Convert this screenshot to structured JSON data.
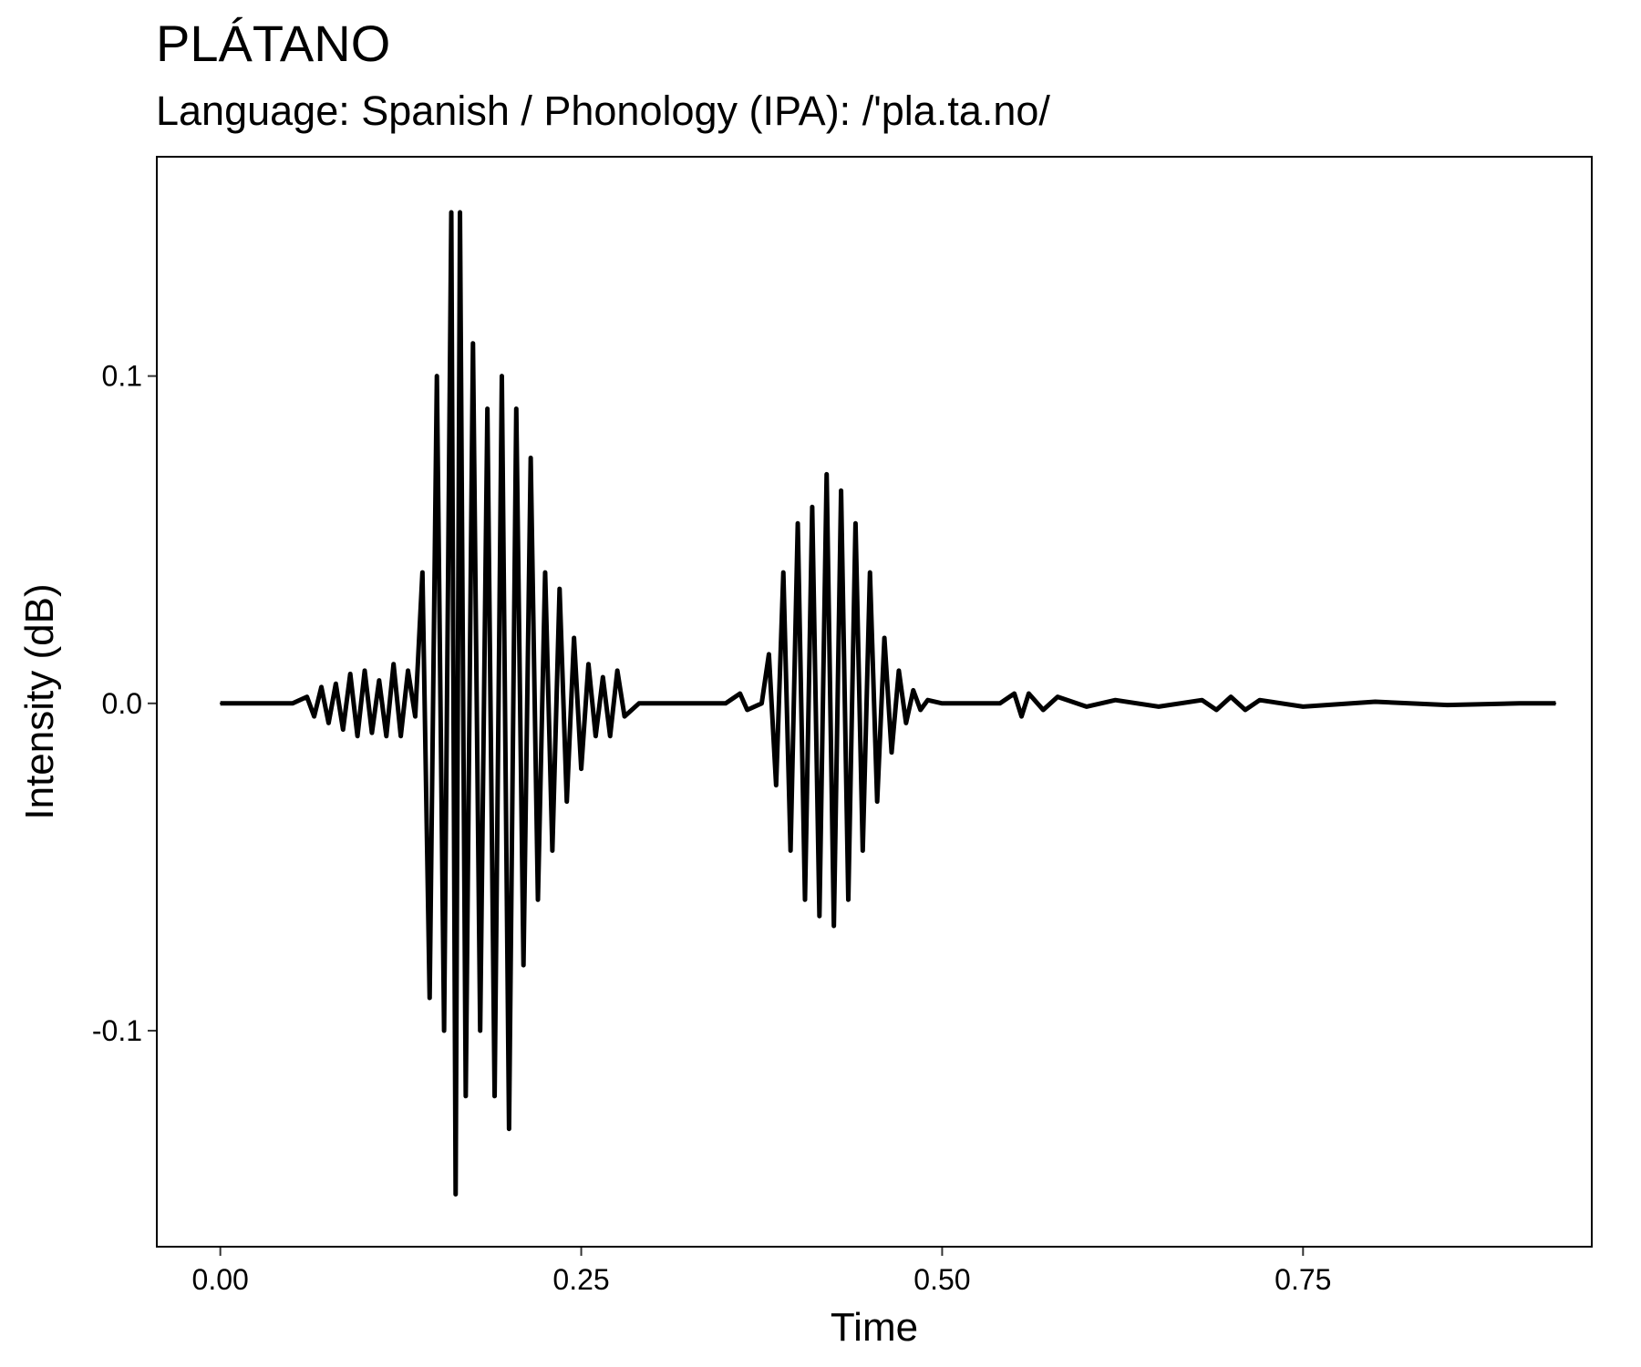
{
  "chart_data": {
    "type": "line",
    "title": "PLÁTANO",
    "subtitle": "Language: Spanish / Phonology (IPA): /'pla.ta.no/",
    "xlabel": "Time",
    "ylabel": "Intensity (dB)",
    "xlim": [
      -0.044,
      0.95
    ],
    "ylim": [
      -0.166,
      0.167
    ],
    "x_ticks": [
      0.0,
      0.25,
      0.5,
      0.75
    ],
    "x_tick_labels": [
      "0.00",
      "0.25",
      "0.50",
      "0.75"
    ],
    "y_ticks": [
      0.1,
      0.0,
      -0.1
    ],
    "y_tick_labels": [
      "0.1",
      "0.0",
      "-0.1"
    ],
    "grid": false,
    "line_color": "#000000",
    "series": [
      {
        "x": [
          0.0,
          0.05,
          0.06,
          0.065,
          0.07,
          0.075,
          0.08,
          0.085,
          0.09,
          0.095,
          0.1,
          0.105,
          0.11,
          0.115,
          0.12,
          0.125,
          0.13,
          0.135,
          0.14,
          0.145,
          0.15,
          0.155,
          0.16,
          0.163,
          0.166,
          0.17,
          0.175,
          0.18,
          0.185,
          0.19,
          0.195,
          0.2,
          0.205,
          0.21,
          0.215,
          0.22,
          0.225,
          0.23,
          0.235,
          0.24,
          0.245,
          0.25,
          0.255,
          0.26,
          0.265,
          0.27,
          0.275,
          0.28,
          0.29,
          0.35,
          0.36,
          0.365,
          0.375,
          0.38,
          0.385,
          0.39,
          0.395,
          0.4,
          0.405,
          0.41,
          0.415,
          0.42,
          0.425,
          0.43,
          0.435,
          0.44,
          0.445,
          0.45,
          0.455,
          0.46,
          0.465,
          0.47,
          0.475,
          0.48,
          0.485,
          0.49,
          0.5,
          0.54,
          0.55,
          0.555,
          0.56,
          0.57,
          0.58,
          0.6,
          0.62,
          0.65,
          0.68,
          0.69,
          0.7,
          0.71,
          0.72,
          0.75,
          0.8,
          0.85,
          0.9,
          0.925
        ],
        "values": [
          0.0,
          0.0,
          0.002,
          -0.004,
          0.005,
          -0.006,
          0.006,
          -0.008,
          0.009,
          -0.01,
          0.01,
          -0.009,
          0.007,
          -0.01,
          0.012,
          -0.01,
          0.01,
          -0.004,
          0.04,
          -0.09,
          0.1,
          -0.1,
          0.15,
          -0.15,
          0.15,
          -0.12,
          0.11,
          -0.1,
          0.09,
          -0.12,
          0.1,
          -0.13,
          0.09,
          -0.08,
          0.075,
          -0.06,
          0.04,
          -0.045,
          0.035,
          -0.03,
          0.02,
          -0.02,
          0.012,
          -0.01,
          0.008,
          -0.01,
          0.01,
          -0.004,
          0.0,
          0.0,
          0.003,
          -0.002,
          0.0,
          0.015,
          -0.025,
          0.04,
          -0.045,
          0.055,
          -0.06,
          0.06,
          -0.065,
          0.07,
          -0.068,
          0.065,
          -0.06,
          0.055,
          -0.045,
          0.04,
          -0.03,
          0.02,
          -0.015,
          0.01,
          -0.006,
          0.004,
          -0.002,
          0.001,
          0.0,
          0.0,
          0.003,
          -0.004,
          0.003,
          -0.002,
          0.002,
          -0.001,
          0.001,
          -0.001,
          0.001,
          -0.002,
          0.002,
          -0.002,
          0.001,
          -0.001,
          0.0005,
          -0.0005,
          0.0,
          0.0
        ]
      }
    ]
  }
}
